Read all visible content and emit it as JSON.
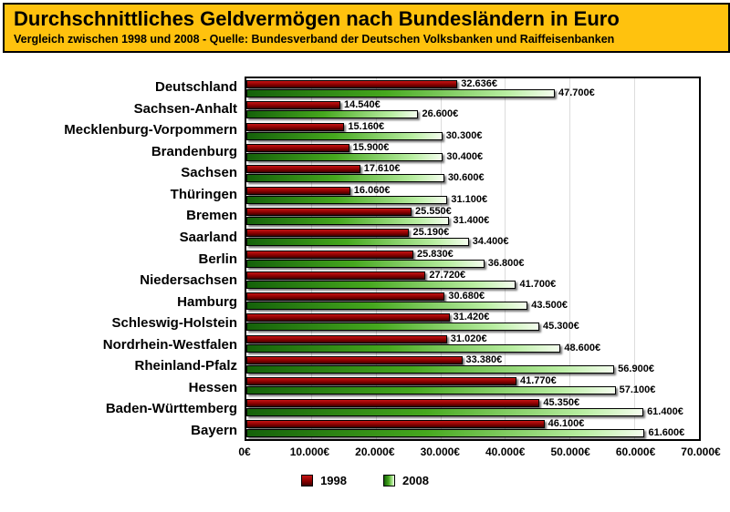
{
  "header": {
    "title": "Durchschnittliches Geldvermögen nach Bundesländern in Euro",
    "subtitle": "Vergleich zwischen 1998 und 2008 - Quelle: Bundesverband der Deutschen Volksbanken und Raiffeisenbanken",
    "background_color": "#FFC20E"
  },
  "chart_data": {
    "type": "bar",
    "orientation": "horizontal",
    "title": "Durchschnittliches Geldvermögen nach Bundesländern in Euro",
    "subtitle": "Vergleich zwischen 1998 und 2008 - Quelle: Bundesverband der Deutschen Volksbanken und Raiffeisenbanken",
    "categories": [
      "Deutschland",
      "Sachsen-Anhalt",
      "Mecklenburg-Vorpommern",
      "Brandenburg",
      "Sachsen",
      "Thüringen",
      "Bremen",
      "Saarland",
      "Berlin",
      "Niedersachsen",
      "Hamburg",
      "Schleswig-Holstein",
      "Nordrhein-Westfalen",
      "Rheinland-Pfalz",
      "Hessen",
      "Baden-Württemberg",
      "Bayern"
    ],
    "series": [
      {
        "name": "1998",
        "color": "#8B0000",
        "values": [
          32636,
          14540,
          15160,
          15900,
          17610,
          16060,
          25550,
          25190,
          25830,
          27720,
          30680,
          31420,
          31020,
          33380,
          41770,
          45350,
          46100
        ],
        "labels": [
          "32.636€",
          "14.540€",
          "15.160€",
          "15.900€",
          "17.610€",
          "16.060€",
          "25.550€",
          "25.190€",
          "25.830€",
          "27.720€",
          "30.680€",
          "31.420€",
          "31.020€",
          "33.380€",
          "41.770€",
          "45.350€",
          "46.100€"
        ]
      },
      {
        "name": "2008",
        "color": "#46A81E",
        "values": [
          47700,
          26600,
          30300,
          30400,
          30600,
          31100,
          31400,
          34400,
          36800,
          41700,
          43500,
          45300,
          48600,
          56900,
          57100,
          61400,
          61600
        ],
        "labels": [
          "47.700€",
          "26.600€",
          "30.300€",
          "30.400€",
          "30.600€",
          "31.100€",
          "31.400€",
          "34.400€",
          "36.800€",
          "41.700€",
          "43.500€",
          "45.300€",
          "48.600€",
          "56.900€",
          "57.100€",
          "61.400€",
          "61.600€"
        ]
      }
    ],
    "x_axis": {
      "min": 0,
      "max": 70000,
      "ticks": [
        "0€",
        "10.000€",
        "20.000€",
        "30.000€",
        "40.000€",
        "50.000€",
        "60.000€",
        "70.000€"
      ]
    },
    "legend_position": "bottom",
    "grid": true
  }
}
